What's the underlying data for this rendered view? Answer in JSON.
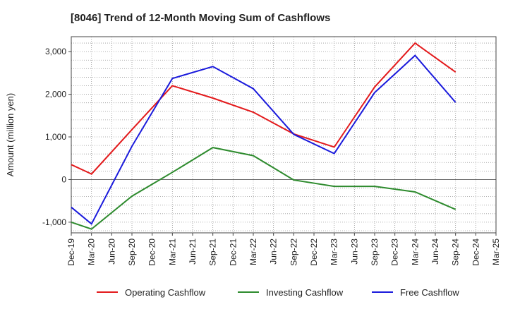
{
  "chart_data": {
    "type": "line",
    "title": "[8046]  Trend of 12-Month Moving Sum of Cashflows",
    "xlabel": "",
    "ylabel": "Amount (million yen)",
    "categories": [
      "Dec-19",
      "Mar-20",
      "Jun-20",
      "Sep-20",
      "Dec-20",
      "Mar-21",
      "Jun-21",
      "Sep-21",
      "Dec-21",
      "Mar-22",
      "Jun-22",
      "Sep-22",
      "Dec-22",
      "Mar-23",
      "Jun-23",
      "Sep-23",
      "Dec-23",
      "Mar-24",
      "Jun-24",
      "Sep-24",
      "Dec-24",
      "Mar-25"
    ],
    "ylim": [
      -1250,
      3350
    ],
    "yticks": [
      -1000,
      0,
      1000,
      2000,
      3000
    ],
    "ytick_labels": [
      "-1,000",
      "0",
      "1,000",
      "2,000",
      "3,000"
    ],
    "grid": true,
    "legend_position": "bottom",
    "series": [
      {
        "name": "Operating Cashflow",
        "color": "#e31a1c",
        "points": [
          [
            0,
            350
          ],
          [
            1,
            130
          ],
          [
            3,
            1170
          ],
          [
            5,
            2200
          ],
          [
            7,
            1910
          ],
          [
            9,
            1580
          ],
          [
            11,
            1070
          ],
          [
            13,
            760
          ],
          [
            15,
            2170
          ],
          [
            17,
            3200
          ],
          [
            19,
            2520
          ]
        ]
      },
      {
        "name": "Investing Cashflow",
        "color": "#2e8b2e",
        "points": [
          [
            0,
            -1000
          ],
          [
            1,
            -1160
          ],
          [
            3,
            -390
          ],
          [
            5,
            170
          ],
          [
            7,
            750
          ],
          [
            9,
            560
          ],
          [
            11,
            -10
          ],
          [
            13,
            -160
          ],
          [
            15,
            -160
          ],
          [
            17,
            -290
          ],
          [
            19,
            -700
          ]
        ]
      },
      {
        "name": "Free Cashflow",
        "color": "#1a1adc",
        "points": [
          [
            0,
            -650
          ],
          [
            1,
            -1040
          ],
          [
            3,
            780
          ],
          [
            5,
            2370
          ],
          [
            7,
            2650
          ],
          [
            9,
            2130
          ],
          [
            11,
            1060
          ],
          [
            13,
            610
          ],
          [
            15,
            2040
          ],
          [
            17,
            2910
          ],
          [
            19,
            1810
          ]
        ]
      }
    ]
  }
}
